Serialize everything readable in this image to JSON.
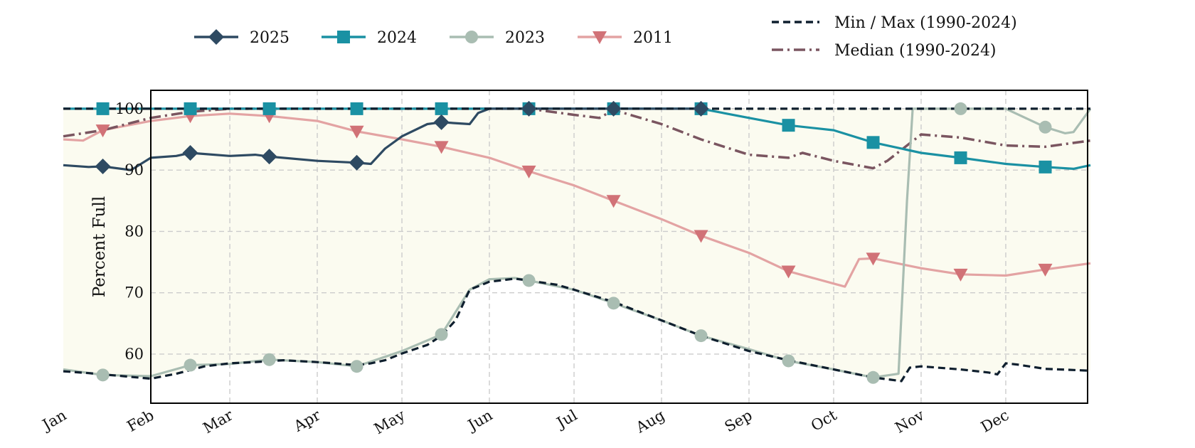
{
  "chart_data": {
    "type": "line",
    "ylabel": "Percent Full",
    "xlabel": "",
    "title": "",
    "months": [
      "Jan",
      "Feb",
      "Mar",
      "Apr",
      "May",
      "Jun",
      "Jul",
      "Aug",
      "Sep",
      "Oct",
      "Nov",
      "Dec"
    ],
    "month_starts": [
      "01-01",
      "02-01",
      "03-01",
      "04-01",
      "05-01",
      "06-01",
      "07-01",
      "08-01",
      "09-01",
      "10-01",
      "11-01",
      "12-01"
    ],
    "ylim": [
      52,
      103
    ],
    "yticks": [
      60,
      70,
      80,
      90,
      100
    ],
    "grid": true,
    "legend": {
      "top-left": [
        "2025",
        "2024",
        "2023",
        "2011"
      ],
      "top-right": [
        "Min / Max (1990-2024)",
        "Median (1990-2024)"
      ]
    },
    "colors": {
      "2025": "#2e4a62",
      "2024": "#1a91a3",
      "2023": "#a9bdb2",
      "2011": "#d17277",
      "2011_line": "#e3a3a3",
      "min_max": "#0f1f2e",
      "median": "#7a5560",
      "band": "#fbfbf0"
    },
    "series": [
      {
        "name": "Min / Max (1990-2024)",
        "style": "dashed",
        "role": "min",
        "points": [
          [
            "01-01",
            57.2
          ],
          [
            "01-10",
            56.9
          ],
          [
            "01-20",
            56.5
          ],
          [
            "02-01",
            56.0
          ],
          [
            "02-10",
            56.8
          ],
          [
            "02-20",
            58.0
          ],
          [
            "03-01",
            58.5
          ],
          [
            "03-10",
            58.7
          ],
          [
            "03-20",
            59.0
          ],
          [
            "04-01",
            58.7
          ],
          [
            "04-10",
            58.4
          ],
          [
            "04-15",
            58.2
          ],
          [
            "04-20",
            58.5
          ],
          [
            "04-25",
            59.0
          ],
          [
            "05-01",
            60.1
          ],
          [
            "05-10",
            61.5
          ],
          [
            "05-15",
            63.0
          ],
          [
            "05-20",
            65.5
          ],
          [
            "05-25",
            70.5
          ],
          [
            "06-01",
            71.8
          ],
          [
            "06-10",
            72.3
          ],
          [
            "06-15",
            72.0
          ],
          [
            "06-25",
            71.3
          ],
          [
            "07-01",
            70.5
          ],
          [
            "07-15",
            68.5
          ],
          [
            "08-01",
            65.5
          ],
          [
            "08-15",
            63.0
          ],
          [
            "09-01",
            60.5
          ],
          [
            "09-15",
            59.0
          ],
          [
            "10-01",
            57.5
          ],
          [
            "10-15",
            56.2
          ],
          [
            "10-25",
            55.6
          ],
          [
            "10-28",
            57.8
          ],
          [
            "11-01",
            58.0
          ],
          [
            "11-15",
            57.5
          ],
          [
            "11-25",
            57.0
          ],
          [
            "11-28",
            56.7
          ],
          [
            "12-01",
            58.5
          ],
          [
            "12-05",
            58.3
          ],
          [
            "12-15",
            57.6
          ],
          [
            "12-31",
            57.3
          ]
        ]
      },
      {
        "name": "Min / Max (1990-2024)",
        "style": "dashed",
        "role": "max",
        "points": [
          [
            "01-01",
            100
          ],
          [
            "12-31",
            100
          ]
        ]
      },
      {
        "name": "Median (1990-2024)",
        "style": "dashdot",
        "points": [
          [
            "01-01",
            95.5
          ],
          [
            "01-15",
            96.5
          ],
          [
            "02-01",
            98.5
          ],
          [
            "02-15",
            99.5
          ],
          [
            "03-01",
            100
          ],
          [
            "06-15",
            100
          ],
          [
            "07-01",
            99.0
          ],
          [
            "07-10",
            98.5
          ],
          [
            "07-15",
            99.8
          ],
          [
            "08-01",
            97.5
          ],
          [
            "08-15",
            95.0
          ],
          [
            "09-01",
            92.5
          ],
          [
            "09-15",
            92.0
          ],
          [
            "09-20",
            92.8
          ],
          [
            "10-01",
            91.5
          ],
          [
            "10-15",
            90.3
          ],
          [
            "10-20",
            91.5
          ],
          [
            "11-01",
            95.8
          ],
          [
            "11-15",
            95.3
          ],
          [
            "12-01",
            94.0
          ],
          [
            "12-15",
            93.8
          ],
          [
            "12-31",
            94.8
          ]
        ]
      },
      {
        "name": "2011",
        "points": [
          [
            "01-01",
            95.0
          ],
          [
            "01-08",
            94.8
          ],
          [
            "01-15",
            96.5
          ],
          [
            "02-01",
            98.0
          ],
          [
            "02-15",
            98.8
          ],
          [
            "03-01",
            99.2
          ],
          [
            "03-15",
            98.8
          ],
          [
            "04-01",
            98.0
          ],
          [
            "04-15",
            96.3
          ],
          [
            "05-01",
            95.0
          ],
          [
            "05-15",
            93.8
          ],
          [
            "06-01",
            92.0
          ],
          [
            "06-15",
            89.8
          ],
          [
            "07-01",
            87.5
          ],
          [
            "07-15",
            85.0
          ],
          [
            "08-01",
            82.0
          ],
          [
            "08-15",
            79.3
          ],
          [
            "09-01",
            76.5
          ],
          [
            "09-15",
            73.5
          ],
          [
            "10-01",
            71.5
          ],
          [
            "10-05",
            71.0
          ],
          [
            "10-10",
            75.5
          ],
          [
            "10-15",
            75.6
          ],
          [
            "11-01",
            74.0
          ],
          [
            "11-15",
            73.0
          ],
          [
            "12-01",
            72.8
          ],
          [
            "12-15",
            73.8
          ],
          [
            "12-31",
            74.8
          ]
        ]
      },
      {
        "name": "2025",
        "points": [
          [
            "01-01",
            90.8
          ],
          [
            "01-10",
            90.5
          ],
          [
            "01-15",
            90.6
          ],
          [
            "01-25",
            90.0
          ],
          [
            "02-01",
            92.0
          ],
          [
            "02-10",
            92.3
          ],
          [
            "02-15",
            92.8
          ],
          [
            "03-01",
            92.3
          ],
          [
            "03-10",
            92.5
          ],
          [
            "03-15",
            92.2
          ],
          [
            "04-01",
            91.5
          ],
          [
            "04-15",
            91.2
          ],
          [
            "04-20",
            91.0
          ],
          [
            "04-25",
            93.5
          ],
          [
            "05-01",
            95.5
          ],
          [
            "05-10",
            97.5
          ],
          [
            "05-15",
            97.8
          ],
          [
            "05-25",
            97.5
          ],
          [
            "05-28",
            99.3
          ],
          [
            "06-01",
            100
          ],
          [
            "06-15",
            100
          ],
          [
            "08-15",
            100
          ]
        ]
      },
      {
        "name": "2024",
        "points": [
          [
            "01-01",
            100
          ],
          [
            "08-15",
            100
          ],
          [
            "09-01",
            98.5
          ],
          [
            "09-15",
            97.3
          ],
          [
            "10-01",
            96.5
          ],
          [
            "10-15",
            94.5
          ],
          [
            "11-01",
            92.8
          ],
          [
            "11-15",
            92.0
          ],
          [
            "12-01",
            91.0
          ],
          [
            "12-15",
            90.5
          ],
          [
            "12-25",
            90.2
          ],
          [
            "12-31",
            90.8
          ]
        ]
      },
      {
        "name": "2023",
        "points": [
          [
            "01-01",
            57.5
          ],
          [
            "01-15",
            56.6
          ],
          [
            "02-01",
            56.4
          ],
          [
            "02-15",
            58.2
          ],
          [
            "03-01",
            58.4
          ],
          [
            "03-15",
            59.1
          ],
          [
            "04-01",
            58.7
          ],
          [
            "04-15",
            58.0
          ],
          [
            "05-01",
            60.5
          ],
          [
            "05-15",
            63.2
          ],
          [
            "05-25",
            70.5
          ],
          [
            "06-01",
            72.2
          ],
          [
            "06-10",
            72.4
          ],
          [
            "06-15",
            72.0
          ],
          [
            "07-01",
            70.5
          ],
          [
            "07-15",
            68.3
          ],
          [
            "08-01",
            65.5
          ],
          [
            "08-15",
            63.0
          ],
          [
            "09-01",
            60.8
          ],
          [
            "09-15",
            58.9
          ],
          [
            "10-01",
            57.5
          ],
          [
            "10-15",
            56.2
          ],
          [
            "10-24",
            56.8
          ],
          [
            "10-27",
            85.0
          ],
          [
            "10-29",
            100
          ],
          [
            "11-15",
            100
          ],
          [
            "12-01",
            100
          ],
          [
            "12-15",
            97.0
          ],
          [
            "12-22",
            96.0
          ],
          [
            "12-25",
            96.2
          ],
          [
            "12-31",
            100
          ]
        ]
      }
    ]
  }
}
